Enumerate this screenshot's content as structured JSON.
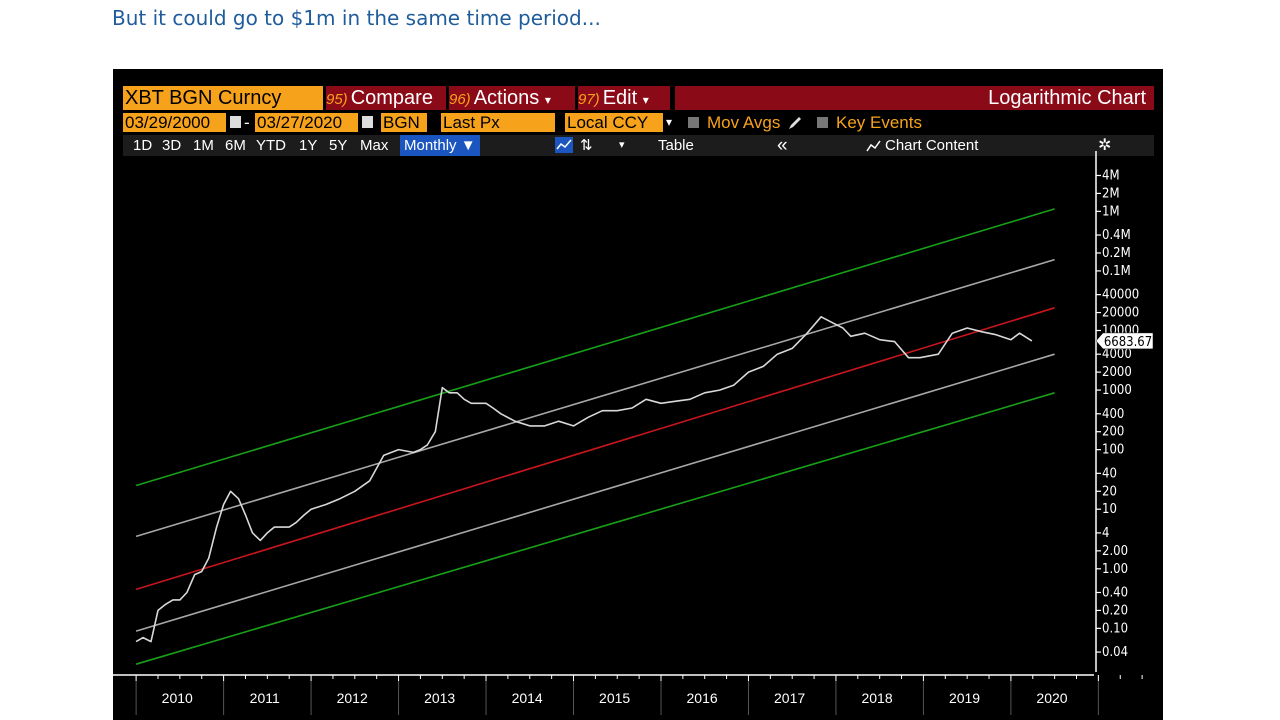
{
  "caption": "But it could go to $1m in the same time period...",
  "toolbar": {
    "ticker": "XBT BGN Curncy",
    "compare_num": "95)",
    "compare": "Compare",
    "actions_num": "96)",
    "actions": "Actions",
    "edit_num": "97)",
    "edit": "Edit",
    "dropdown_glyph": "▾",
    "chart_title": "Logarithmic Chart",
    "start_date": "03/29/2000",
    "date_sep": "-",
    "end_date": "03/27/2020",
    "source": "BGN",
    "field": "Last Px",
    "currency": "Local CCY",
    "mov_avgs": "Mov Avgs",
    "key_events": "Key Events",
    "periods": [
      "1D",
      "3D",
      "1M",
      "6M",
      "YTD",
      "1Y",
      "5Y",
      "Max"
    ],
    "frequency": "Monthly ▼",
    "bar_icon_glyph": "⇅",
    "bar_dropdown": "▾",
    "table": "Table",
    "collapse": "«",
    "chart_content": "Chart Content",
    "gear": "✲"
  },
  "chart_data": {
    "type": "line",
    "yscale": "log",
    "ylim": [
      0.02,
      7000000
    ],
    "xlim": [
      2009.85,
      2020.95
    ],
    "x_tick_labels": [
      "2010",
      "2011",
      "2012",
      "2013",
      "2014",
      "2015",
      "2016",
      "2017",
      "2018",
      "2019",
      "2020"
    ],
    "y_ticks": [
      {
        "value": 4000000,
        "label": "4M"
      },
      {
        "value": 2000000,
        "label": "2M"
      },
      {
        "value": 1000000,
        "label": "1M"
      },
      {
        "value": 400000,
        "label": "0.4M"
      },
      {
        "value": 200000,
        "label": "0.2M"
      },
      {
        "value": 100000,
        "label": "0.1M"
      },
      {
        "value": 40000,
        "label": "40000"
      },
      {
        "value": 20000,
        "label": "20000"
      },
      {
        "value": 10000,
        "label": "10000"
      },
      {
        "value": 4000,
        "label": "4000"
      },
      {
        "value": 2000,
        "label": "2000"
      },
      {
        "value": 1000,
        "label": "1000"
      },
      {
        "value": 400,
        "label": "400"
      },
      {
        "value": 200,
        "label": "200"
      },
      {
        "value": 100,
        "label": "100"
      },
      {
        "value": 40,
        "label": "40"
      },
      {
        "value": 20,
        "label": "20"
      },
      {
        "value": 10,
        "label": "10"
      },
      {
        "value": 4,
        "label": "4"
      },
      {
        "value": 2,
        "label": "2.00"
      },
      {
        "value": 1,
        "label": "1.00"
      },
      {
        "value": 0.4,
        "label": "0.40"
      },
      {
        "value": 0.2,
        "label": "0.20"
      },
      {
        "value": 0.1,
        "label": "0.10"
      },
      {
        "value": 0.04,
        "label": "0.04"
      }
    ],
    "last_value_label": "6683.67",
    "last_value": 6683.67,
    "price_color": "#d8d8d8",
    "series": [
      {
        "x": [
          2010.0,
          2010.08,
          2010.17,
          2010.25,
          2010.33,
          2010.42,
          2010.5,
          2010.58,
          2010.67,
          2010.75,
          2010.83,
          2010.92,
          2011.0,
          2011.08,
          2011.17,
          2011.25,
          2011.33,
          2011.42,
          2011.5,
          2011.58,
          2011.67,
          2011.75,
          2011.83,
          2011.92,
          2012.0,
          2012.17,
          2012.33,
          2012.5,
          2012.67,
          2012.83,
          2013.0,
          2013.17,
          2013.25,
          2013.33,
          2013.42,
          2013.5,
          2013.58,
          2013.67,
          2013.75,
          2013.83,
          2013.92,
          2014.0,
          2014.08,
          2014.17,
          2014.33,
          2014.5,
          2014.67,
          2014.83,
          2015.0,
          2015.17,
          2015.33,
          2015.5,
          2015.67,
          2015.83,
          2016.0,
          2016.17,
          2016.33,
          2016.5,
          2016.67,
          2016.83,
          2017.0,
          2017.17,
          2017.33,
          2017.5,
          2017.67,
          2017.83,
          2017.96,
          2018.08,
          2018.17,
          2018.33,
          2018.5,
          2018.67,
          2018.83,
          2018.96,
          2019.17,
          2019.33,
          2019.5,
          2019.67,
          2019.83,
          2020.0,
          2020.1,
          2020.24
        ],
        "y": [
          0.06,
          0.07,
          0.06,
          0.2,
          0.25,
          0.3,
          0.3,
          0.4,
          0.8,
          0.9,
          1.5,
          5,
          12,
          20,
          15,
          8,
          4,
          3,
          4,
          5,
          5,
          5,
          6,
          8,
          10,
          12,
          15,
          20,
          30,
          80,
          100,
          90,
          100,
          120,
          200,
          1100,
          900,
          900,
          700,
          600,
          600,
          600,
          500,
          400,
          300,
          250,
          250,
          300,
          250,
          350,
          450,
          450,
          500,
          700,
          600,
          650,
          700,
          900,
          1000,
          1200,
          2000,
          2500,
          4000,
          5000,
          9000,
          17000,
          13500,
          11000,
          8000,
          9000,
          7000,
          6500,
          3500,
          3500,
          4000,
          9000,
          11000,
          9500,
          8500,
          7000,
          9000,
          6683.67
        ],
        "color": "#d8d8d8"
      },
      {
        "x": [
          2010.0,
          2020.5
        ],
        "y": [
          25,
          1100000
        ],
        "color": "#17a017"
      },
      {
        "x": [
          2010.0,
          2020.5
        ],
        "y": [
          3.5,
          155000
        ],
        "color": "#a7a7a7"
      },
      {
        "x": [
          2010.0,
          2020.5
        ],
        "y": [
          0.45,
          24000
        ],
        "color": "#c8161d"
      },
      {
        "x": [
          2010.0,
          2020.5
        ],
        "y": [
          0.09,
          4000
        ],
        "color": "#a7a7a7"
      },
      {
        "x": [
          2010.0,
          2020.5
        ],
        "y": [
          0.025,
          900
        ],
        "color": "#17a017"
      }
    ]
  },
  "colors": {
    "orange": "#f7a21b",
    "red_button": "#8b0a17",
    "blue": "#1a55c0",
    "caption": "#1f5c9c"
  }
}
